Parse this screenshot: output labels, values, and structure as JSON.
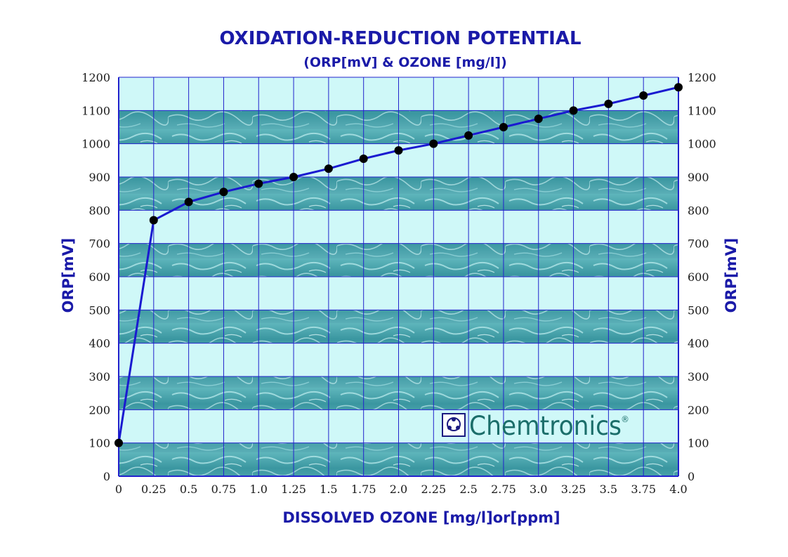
{
  "chart_data": {
    "type": "line",
    "title": "OXIDATION-REDUCTION POTENTIAL",
    "subtitle": "(ORP[mV] & OZONE [mg/l])",
    "xlabel": "DISSOLVED OZONE [mg/l]or[ppm]",
    "ylabel_left": "ORP[mV]",
    "ylabel_right": "ORP[mV]",
    "xlim": [
      0,
      4.0
    ],
    "ylim": [
      0,
      1200
    ],
    "x_tick_labels": [
      "0",
      "0.25",
      "0.5",
      "0.75",
      "1.0",
      "1.25",
      "1.5",
      "1.75",
      "2.0",
      "2.25",
      "2.5",
      "2.75",
      "3.0",
      "3.25",
      "3.5",
      "3.75",
      "4.0"
    ],
    "y_tick_labels_left": [
      "0",
      "100",
      "200",
      "300",
      "400",
      "500",
      "600",
      "700",
      "800",
      "900",
      "1000",
      "1100",
      "1200"
    ],
    "y_tick_labels_right": [
      "0",
      "100",
      "200",
      "300",
      "400",
      "500",
      "600",
      "700",
      "800",
      "900",
      "1000",
      "1100",
      "1200"
    ],
    "grid": true,
    "series": [
      {
        "x": [
          0,
          0.25,
          0.5,
          0.75,
          1.0,
          1.25,
          1.5,
          1.75,
          2.0,
          2.25,
          2.5,
          2.75,
          3.0,
          3.25,
          3.5,
          3.75,
          4.0
        ],
        "values": [
          100,
          770,
          825,
          855,
          880,
          900,
          925,
          955,
          980,
          1000,
          1025,
          1050,
          1075,
          1100,
          1120,
          1145,
          1170
        ]
      }
    ],
    "colors": {
      "line": "#1a1ad0",
      "marker": "#000000",
      "grid": "#2222cc",
      "band_light": "#cff8f8",
      "band_water": "#3f9ea8",
      "text_blue": "#1a1aa8"
    }
  },
  "logo": {
    "text": "Chemtronics",
    "mark": "®"
  }
}
